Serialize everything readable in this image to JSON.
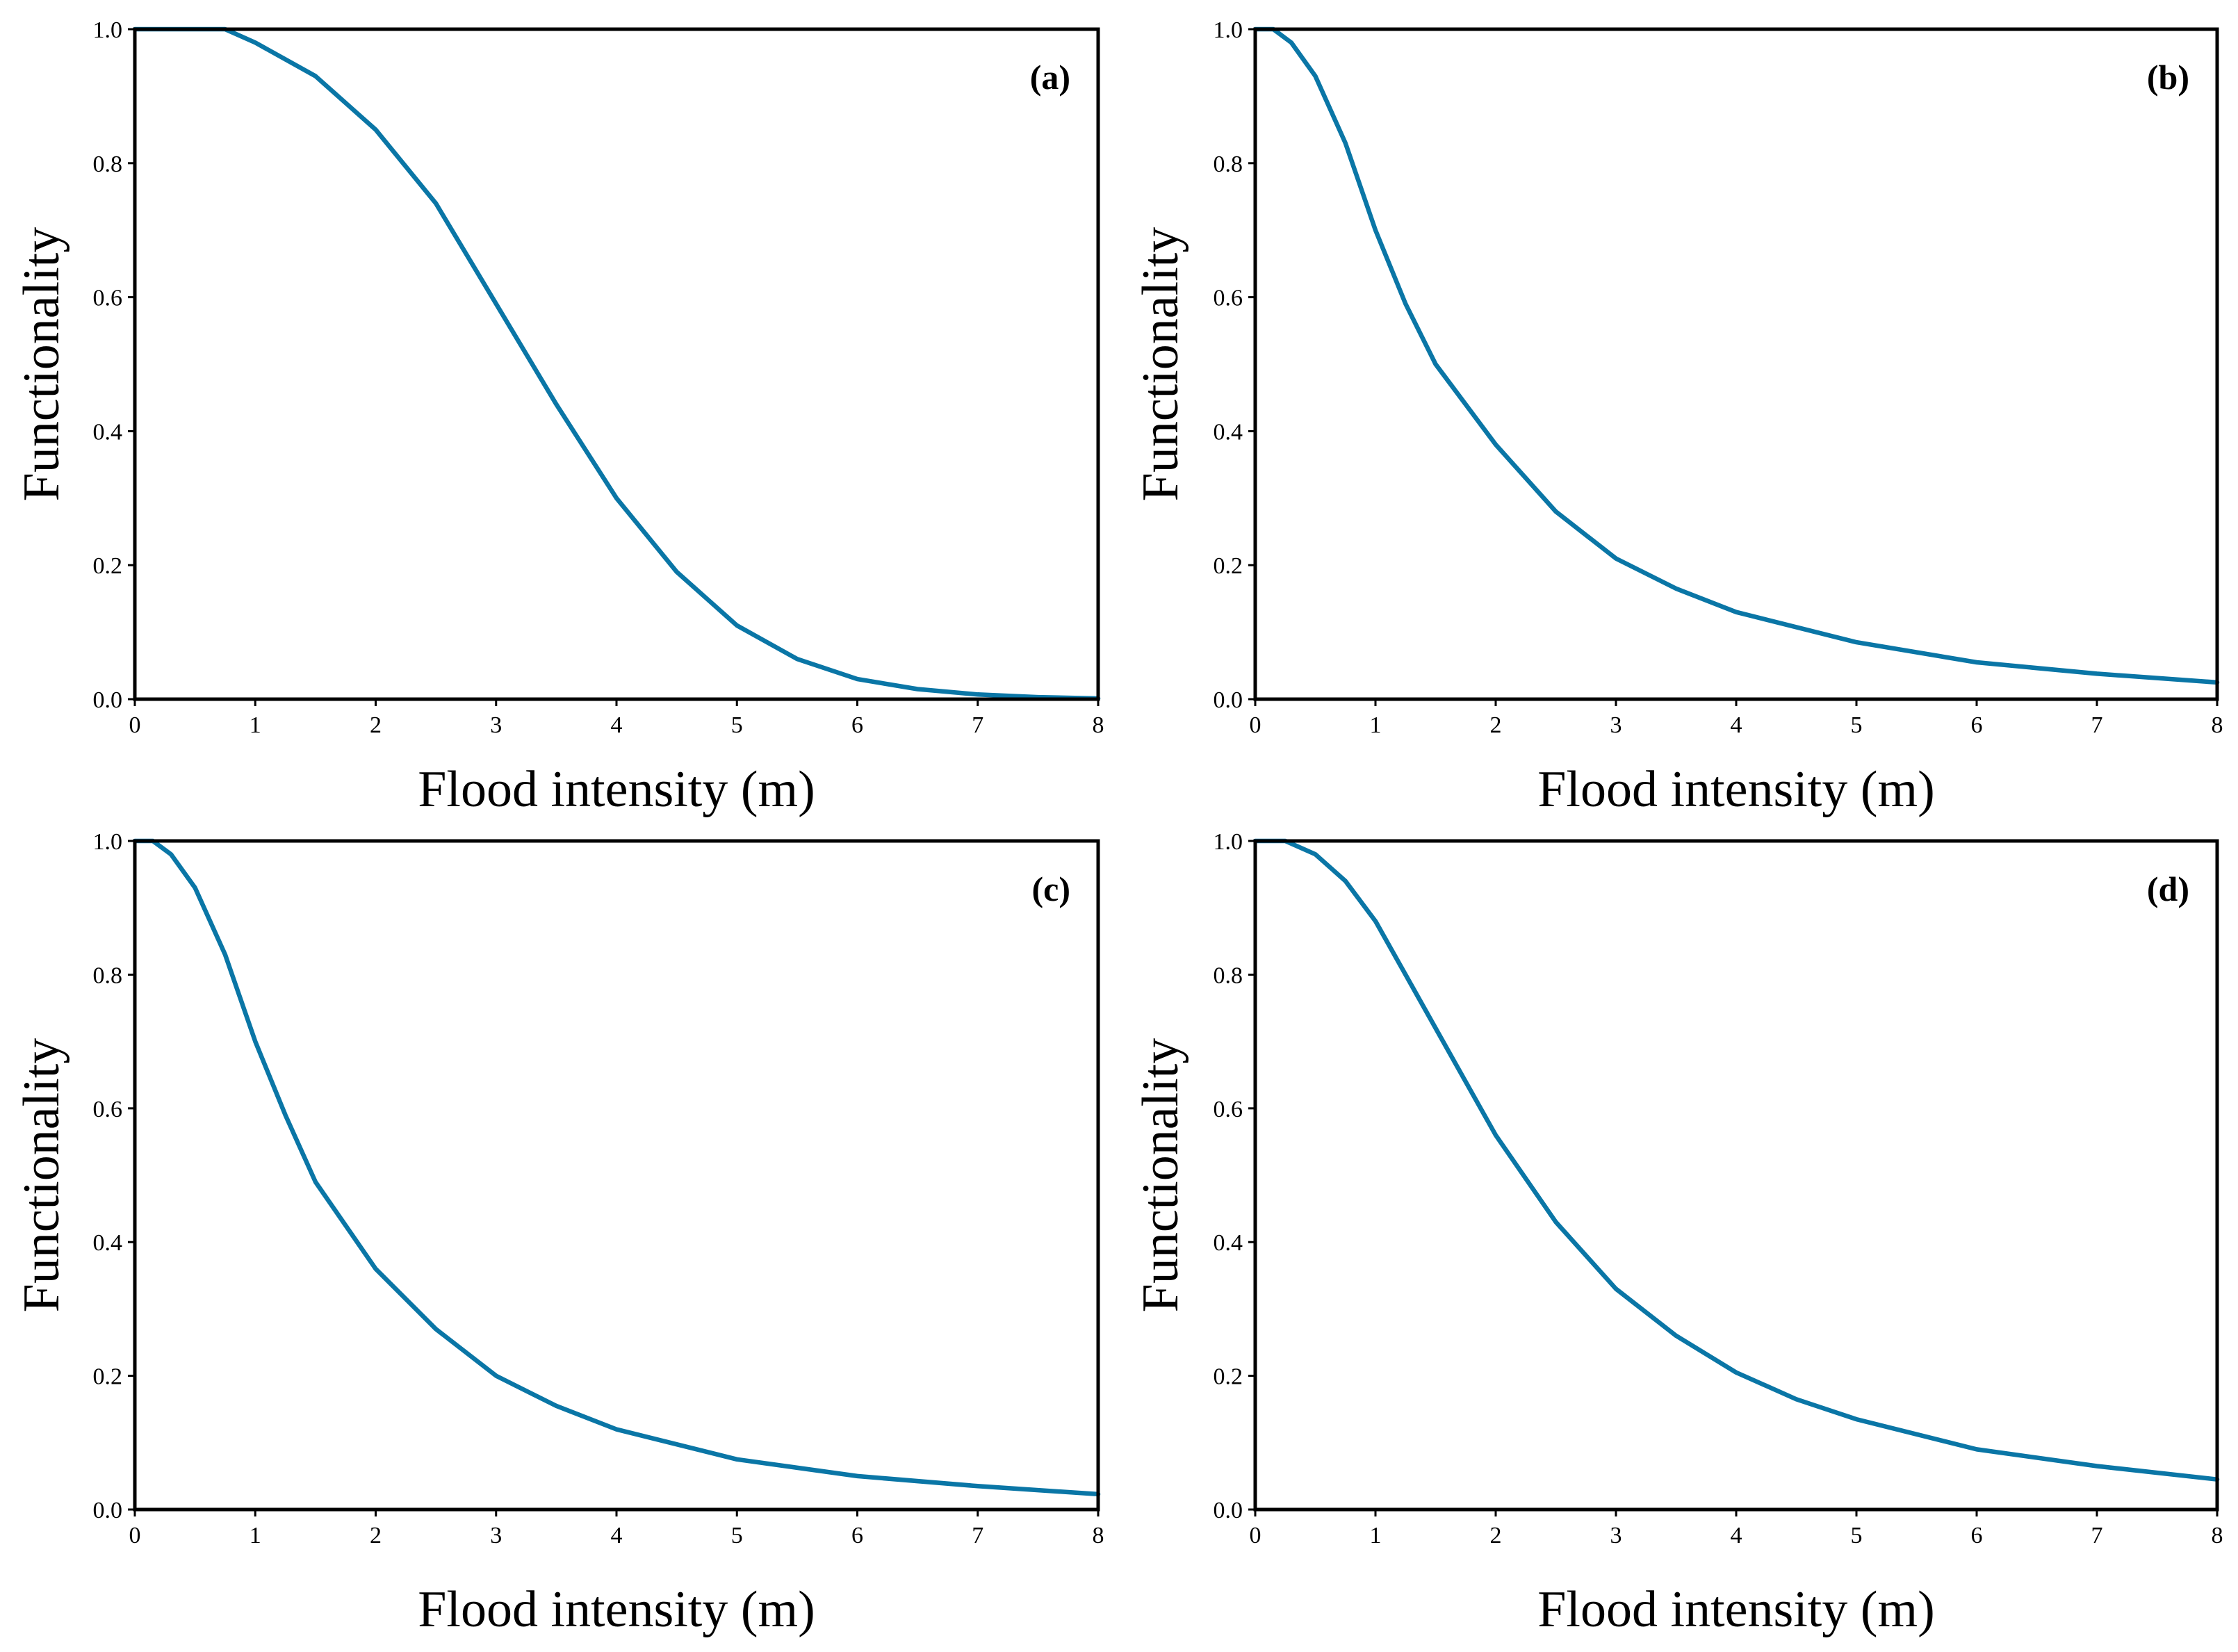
{
  "colors": {
    "curve": "#0a76a6",
    "axis": "#000000",
    "background": "#ffffff"
  },
  "chart_data": [
    {
      "type": "line",
      "panel_label": "(a)",
      "xlabel": "Flood intensity (m)",
      "ylabel": "Functionality",
      "xlim": [
        0,
        8
      ],
      "ylim": [
        0,
        1
      ],
      "xticks": [
        "0",
        "1",
        "2",
        "3",
        "4",
        "5",
        "6",
        "7",
        "8"
      ],
      "yticks": [
        "0.0",
        "0.2",
        "0.4",
        "0.6",
        "0.8",
        "1.0"
      ],
      "grid": false,
      "series": [
        {
          "name": "functionality",
          "x": [
            0,
            0.5,
            0.75,
            1,
            1.5,
            2,
            2.5,
            3,
            3.5,
            4,
            4.5,
            5,
            5.5,
            6,
            6.5,
            7,
            7.5,
            8
          ],
          "y": [
            1.0,
            1.0,
            1.0,
            0.98,
            0.93,
            0.85,
            0.74,
            0.59,
            0.44,
            0.3,
            0.19,
            0.11,
            0.06,
            0.03,
            0.015,
            0.007,
            0.003,
            0.001
          ]
        }
      ]
    },
    {
      "type": "line",
      "panel_label": "(b)",
      "xlabel": "Flood intensity (m)",
      "ylabel": "Functionality",
      "xlim": [
        0,
        8
      ],
      "ylim": [
        0,
        1
      ],
      "xticks": [
        "0",
        "1",
        "2",
        "3",
        "4",
        "5",
        "6",
        "7",
        "8"
      ],
      "yticks": [
        "0.0",
        "0.2",
        "0.4",
        "0.6",
        "0.8",
        "1.0"
      ],
      "grid": false,
      "series": [
        {
          "name": "functionality",
          "x": [
            0,
            0.15,
            0.3,
            0.5,
            0.75,
            1,
            1.25,
            1.5,
            2,
            2.5,
            3,
            3.5,
            4,
            5,
            6,
            7,
            8
          ],
          "y": [
            1.0,
            1.0,
            0.98,
            0.93,
            0.83,
            0.7,
            0.59,
            0.5,
            0.38,
            0.28,
            0.21,
            0.165,
            0.13,
            0.085,
            0.055,
            0.038,
            0.025
          ]
        }
      ]
    },
    {
      "type": "line",
      "panel_label": "(c)",
      "xlabel": "Flood intensity (m)",
      "ylabel": "Functionality",
      "xlim": [
        0,
        8
      ],
      "ylim": [
        0,
        1
      ],
      "xticks": [
        "0",
        "1",
        "2",
        "3",
        "4",
        "5",
        "6",
        "7",
        "8"
      ],
      "yticks": [
        "0.0",
        "0.2",
        "0.4",
        "0.6",
        "0.8",
        "1.0"
      ],
      "grid": false,
      "series": [
        {
          "name": "functionality",
          "x": [
            0,
            0.15,
            0.3,
            0.5,
            0.75,
            1,
            1.25,
            1.5,
            2,
            2.5,
            3,
            3.5,
            4,
            5,
            6,
            7,
            8
          ],
          "y": [
            1.0,
            1.0,
            0.98,
            0.93,
            0.83,
            0.7,
            0.59,
            0.49,
            0.36,
            0.27,
            0.2,
            0.155,
            0.12,
            0.075,
            0.05,
            0.035,
            0.023
          ]
        }
      ]
    },
    {
      "type": "line",
      "panel_label": "(d)",
      "xlabel": "Flood intensity (m)",
      "ylabel": "Functionality",
      "xlim": [
        0,
        8
      ],
      "ylim": [
        0,
        1
      ],
      "xticks": [
        "0",
        "1",
        "2",
        "3",
        "4",
        "5",
        "6",
        "7",
        "8"
      ],
      "yticks": [
        "0.0",
        "0.2",
        "0.4",
        "0.6",
        "0.8",
        "1.0"
      ],
      "grid": false,
      "series": [
        {
          "name": "functionality",
          "x": [
            0,
            0.25,
            0.5,
            0.75,
            1,
            1.25,
            1.5,
            2,
            2.5,
            3,
            3.5,
            4,
            4.5,
            5,
            6,
            7,
            8
          ],
          "y": [
            1.0,
            1.0,
            0.98,
            0.94,
            0.88,
            0.8,
            0.72,
            0.56,
            0.43,
            0.33,
            0.26,
            0.205,
            0.165,
            0.135,
            0.09,
            0.065,
            0.045
          ]
        }
      ]
    }
  ]
}
